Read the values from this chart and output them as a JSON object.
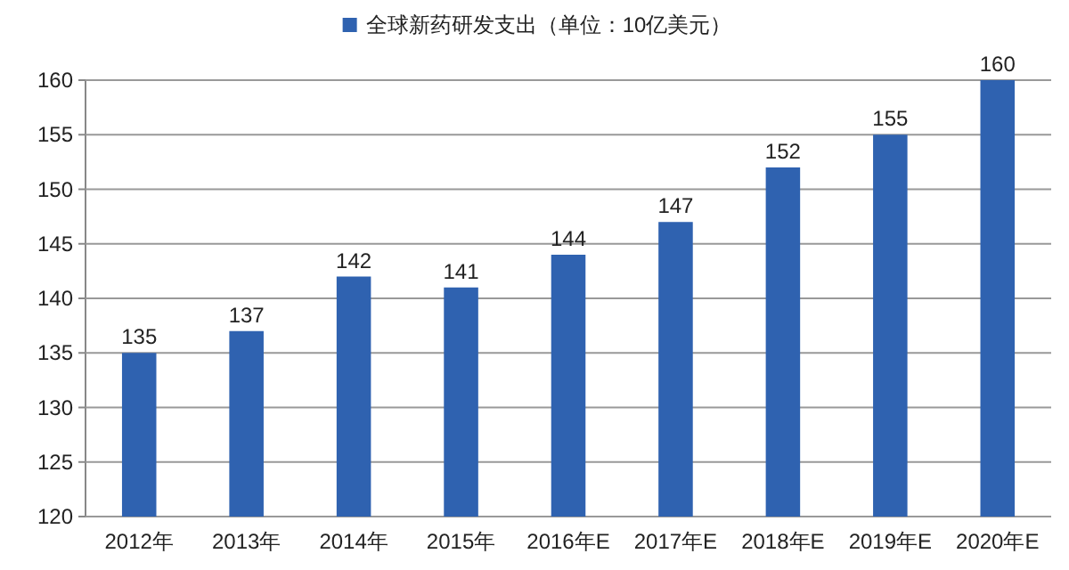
{
  "chart_data": {
    "type": "bar",
    "categories": [
      "2012年",
      "2013年",
      "2014年",
      "2015年",
      "2016年E",
      "2017年E",
      "2018年E",
      "2019年E",
      "2020年E"
    ],
    "series": [
      {
        "name": "全球新药研发支出（单位：10亿美元）",
        "color": "#2f62b0",
        "values": [
          135,
          137,
          142,
          141,
          144,
          147,
          152,
          155,
          160
        ]
      }
    ],
    "ylim": [
      120,
      160
    ],
    "yticks": [
      120,
      125,
      130,
      135,
      140,
      145,
      150,
      155,
      160
    ],
    "grid": "y",
    "legend": "top",
    "data_labels": true
  }
}
